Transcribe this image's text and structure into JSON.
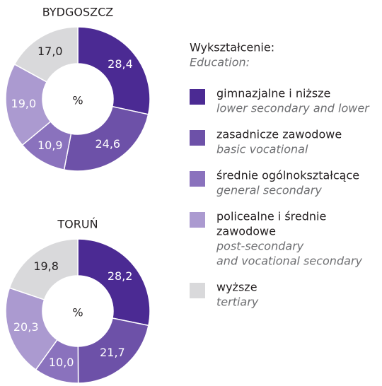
{
  "chart_data": [
    {
      "type": "pie",
      "title": "BYDGOSZCZ",
      "center_label": "%",
      "values": [
        28.4,
        24.6,
        10.9,
        19.0,
        17.0
      ],
      "value_labels": [
        "28,4",
        "24,6",
        "10,9",
        "19,0",
        "17,0"
      ],
      "colors": [
        "#4b2a93",
        "#6d51a8",
        "#8a72bd",
        "#ab9ad0",
        "#d9d9db"
      ]
    },
    {
      "type": "pie",
      "title": "TORUŃ",
      "center_label": "%",
      "values": [
        28.2,
        21.7,
        10.0,
        20.3,
        19.8
      ],
      "value_labels": [
        "28,2",
        "21,7",
        "10,0",
        "20,3",
        "19,8"
      ],
      "colors": [
        "#4b2a93",
        "#6d51a8",
        "#8a72bd",
        "#ab9ad0",
        "#d9d9db"
      ]
    }
  ],
  "legend": {
    "title": "Wykształcenie:",
    "subtitle": "Education:",
    "items": [
      {
        "label": [
          "gimnazjalne i niższe"
        ],
        "label_en": [
          "lower secondary and lower"
        ]
      },
      {
        "label": [
          "zasadnicze zawodowe"
        ],
        "label_en": [
          "basic vocational"
        ]
      },
      {
        "label": [
          "średnie ogólnokształcące"
        ],
        "label_en": [
          "general secondary"
        ]
      },
      {
        "label": [
          "policealne i średnie",
          "zawodowe"
        ],
        "label_en": [
          "post-secondary",
          "and vocational secondary"
        ]
      },
      {
        "label": [
          "wyższe"
        ],
        "label_en": [
          "tertiary"
        ]
      }
    ]
  }
}
